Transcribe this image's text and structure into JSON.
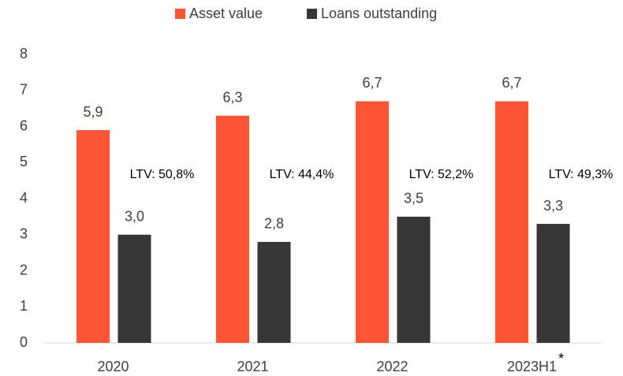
{
  "chart_data": {
    "type": "bar",
    "categories": [
      "2020",
      "2021",
      "2022",
      "2023H1"
    ],
    "category_notes": [
      null,
      null,
      null,
      "*"
    ],
    "series": [
      {
        "name": "Asset value",
        "color": "#ff5436",
        "values": [
          5.9,
          6.3,
          6.7,
          6.7
        ],
        "value_labels": [
          "5,9",
          "6,3",
          "6,7",
          "6,7"
        ]
      },
      {
        "name": "Loans outstanding",
        "color": "#363636",
        "values": [
          3.0,
          2.8,
          3.5,
          3.3
        ],
        "value_labels": [
          "3,0",
          "2,8",
          "3,5",
          "3,3"
        ]
      }
    ],
    "annotations": [
      "LTV: 50,8%",
      "LTV: 44,4%",
      "LTV: 52,2%",
      "LTV: 49,3%"
    ],
    "ylim": [
      0,
      8
    ],
    "yticks": [
      0,
      1,
      2,
      3,
      4,
      5,
      6,
      7,
      8
    ],
    "grid": false,
    "legend": "top"
  }
}
